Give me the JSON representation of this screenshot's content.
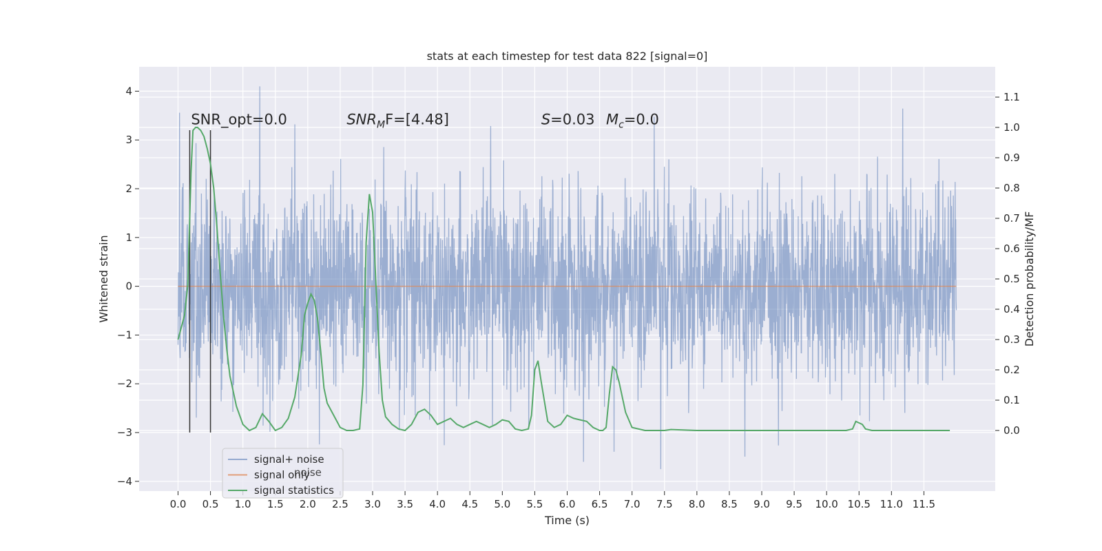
{
  "chart_data": {
    "type": "line",
    "title": "stats at each timestep for test data 822 [signal=0]",
    "xlabel": "Time (s)",
    "ylabel": "Whitened strain",
    "ylabel_right": "Detection probability/MF",
    "xlim": [
      -0.6,
      12.6
    ],
    "ylim": [
      -4.2,
      4.5
    ],
    "ylim_right": [
      -0.2,
      1.2
    ],
    "x_ticks": [
      0.0,
      0.5,
      1.0,
      1.5,
      2.0,
      2.5,
      3.0,
      3.5,
      4.0,
      4.5,
      5.0,
      5.5,
      6.0,
      6.5,
      7.0,
      7.5,
      8.0,
      8.5,
      9.0,
      9.5,
      10.0,
      10.5,
      11.0,
      11.5
    ],
    "x_tick_labels": [
      "0.0",
      "0.5",
      "1.0",
      "1.5",
      "2.0",
      "2.5",
      "3.0",
      "3.5",
      "4.0",
      "4.5",
      "5.0",
      "5.5",
      "6.0",
      "6.5",
      "7.0",
      "7.5",
      "8.0",
      "8.5",
      "9.0",
      "9.5",
      "10.0",
      "10.5",
      "11.0",
      "11.5"
    ],
    "y_ticks": [
      -4,
      -3,
      -2,
      -1,
      0,
      1,
      2,
      3,
      4
    ],
    "y_tick_labels": [
      "−4",
      "−3",
      "−2",
      "−1",
      "0",
      "1",
      "2",
      "3",
      "4"
    ],
    "y_right_ticks": [
      0.0,
      0.1,
      0.2,
      0.3,
      0.4,
      0.5,
      0.6,
      0.7,
      0.8,
      0.9,
      1.0,
      1.1
    ],
    "y_right_tick_labels": [
      "0.0",
      "0.1",
      "0.2",
      "0.3",
      "0.4",
      "0.5",
      "0.6",
      "0.7",
      "0.8",
      "0.9",
      "1.0",
      "1.1"
    ],
    "grid": true,
    "legend_position": "lower-left",
    "series": [
      {
        "name": "signal+ noise",
        "color": "#4c72b0",
        "axis": "left",
        "noise": {
          "t_start": 0.0,
          "t_end": 12.0,
          "std": 1.0,
          "peak_max": 4.1,
          "peak_min": -3.75
        }
      },
      {
        "name": "signal only",
        "color": "#dd8452",
        "axis": "left",
        "x": [
          0.0,
          12.0
        ],
        "y": [
          0.0,
          0.0
        ]
      },
      {
        "name": "signal statistics",
        "color": "#55a868",
        "axis": "right",
        "x": [
          0.0,
          0.1,
          0.15,
          0.2,
          0.23,
          0.27,
          0.3,
          0.35,
          0.4,
          0.45,
          0.5,
          0.55,
          0.6,
          0.65,
          0.7,
          0.75,
          0.8,
          0.85,
          0.9,
          0.95,
          1.0,
          1.1,
          1.2,
          1.3,
          1.4,
          1.5,
          1.6,
          1.7,
          1.8,
          1.9,
          1.95,
          2.0,
          2.05,
          2.1,
          2.15,
          2.2,
          2.25,
          2.3,
          2.4,
          2.5,
          2.6,
          2.7,
          2.8,
          2.85,
          2.9,
          2.95,
          3.0,
          3.05,
          3.1,
          3.15,
          3.2,
          3.3,
          3.4,
          3.5,
          3.6,
          3.7,
          3.8,
          3.9,
          4.0,
          4.1,
          4.2,
          4.3,
          4.4,
          4.5,
          4.6,
          4.7,
          4.8,
          4.9,
          5.0,
          5.1,
          5.2,
          5.3,
          5.4,
          5.45,
          5.5,
          5.55,
          5.6,
          5.7,
          5.8,
          5.9,
          6.0,
          6.1,
          6.2,
          6.3,
          6.4,
          6.5,
          6.55,
          6.6,
          6.65,
          6.7,
          6.75,
          6.8,
          6.9,
          7.0,
          7.2,
          7.5,
          7.6,
          8.0,
          9.0,
          10.0,
          10.3,
          10.4,
          10.45,
          10.5,
          10.55,
          10.6,
          10.7,
          11.0,
          11.5,
          11.9
        ],
        "y": [
          0.3,
          0.38,
          0.48,
          0.85,
          0.99,
          1.0,
          1.0,
          0.99,
          0.97,
          0.93,
          0.88,
          0.8,
          0.67,
          0.52,
          0.38,
          0.27,
          0.18,
          0.13,
          0.08,
          0.05,
          0.02,
          0.0,
          0.01,
          0.055,
          0.03,
          0.0,
          0.01,
          0.04,
          0.11,
          0.25,
          0.38,
          0.42,
          0.45,
          0.43,
          0.37,
          0.26,
          0.14,
          0.09,
          0.05,
          0.01,
          0.0,
          0.0,
          0.005,
          0.15,
          0.62,
          0.78,
          0.72,
          0.49,
          0.26,
          0.1,
          0.045,
          0.02,
          0.005,
          0.0,
          0.02,
          0.06,
          0.07,
          0.05,
          0.02,
          0.03,
          0.04,
          0.02,
          0.01,
          0.02,
          0.03,
          0.02,
          0.01,
          0.02,
          0.035,
          0.03,
          0.005,
          0.0,
          0.005,
          0.05,
          0.2,
          0.23,
          0.16,
          0.03,
          0.01,
          0.02,
          0.05,
          0.04,
          0.035,
          0.03,
          0.01,
          0.0,
          0.0,
          0.01,
          0.12,
          0.21,
          0.2,
          0.16,
          0.06,
          0.01,
          0.0,
          0.0,
          0.003,
          0.0,
          0.0,
          0.0,
          0.0,
          0.005,
          0.03,
          0.025,
          0.02,
          0.005,
          0.0,
          0.0,
          0.0,
          0.0
        ]
      }
    ],
    "vertical_markers": {
      "color": "#333333",
      "x": [
        0.18,
        0.5
      ],
      "y_range": [
        -3.0,
        3.2
      ]
    },
    "annotations": [
      {
        "text": "SNR_opt=0.0",
        "x": 0.2,
        "y": 3.32
      },
      {
        "text": "SNR_MF=[4.48]",
        "x": 2.6,
        "y": 3.32,
        "base": "SNR",
        "sub": "M",
        "rest": "F=[4.48]",
        "italic_base": true
      },
      {
        "text": "S=0.03",
        "x": 5.6,
        "y": 3.32,
        "base": "S",
        "rest": "=0.03",
        "italic_base": true
      },
      {
        "text": "M_c=0.0",
        "x": 6.6,
        "y": 3.32,
        "base": "M",
        "sub": "c",
        "rest": "=0.0",
        "italic_base": true
      }
    ],
    "legend": [
      "signal+ noise",
      "signal only",
      "signal statistics"
    ],
    "legend_overlap_text": "noise"
  }
}
